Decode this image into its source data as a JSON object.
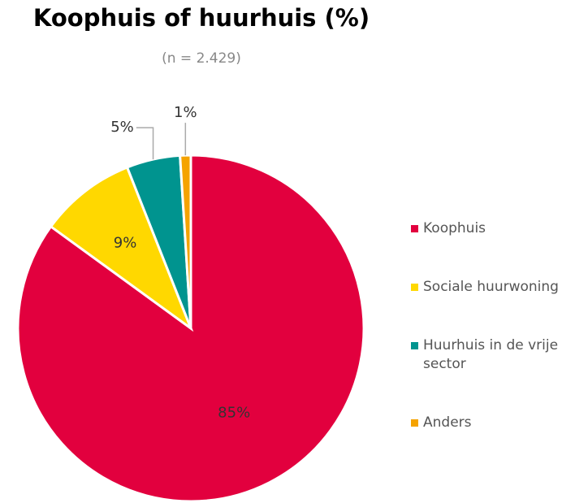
{
  "chart_data": {
    "type": "pie",
    "title": "Koophuis of huurhuis (%)",
    "subtitle": "(n = 2.429)",
    "categories": [
      "Koophuis",
      "Sociale huurwoning",
      "Huurhuis in de vrije sector",
      "Anders"
    ],
    "values": [
      85,
      9,
      5,
      1
    ],
    "value_labels": [
      "85%",
      "9%",
      "5%",
      "1%"
    ],
    "colors": [
      "#e2003e",
      "#ffd800",
      "#00948f",
      "#f5a300"
    ],
    "legend": "right"
  }
}
